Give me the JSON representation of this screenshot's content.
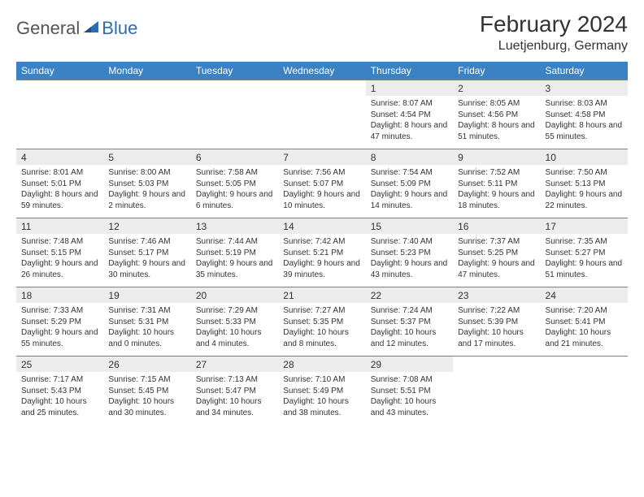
{
  "brand": {
    "part1": "General",
    "part2": "Blue"
  },
  "title": "February 2024",
  "location": "Luetjenburg, Germany",
  "colors": {
    "header_bg": "#3b82c4",
    "header_fg": "#ffffff",
    "daynum_bg": "#ececec",
    "border": "#808080",
    "text": "#333333",
    "brand_blue": "#2a6db5"
  },
  "day_headers": [
    "Sunday",
    "Monday",
    "Tuesday",
    "Wednesday",
    "Thursday",
    "Friday",
    "Saturday"
  ],
  "weeks": [
    [
      null,
      null,
      null,
      null,
      {
        "n": "1",
        "sr": "Sunrise: 8:07 AM",
        "ss": "Sunset: 4:54 PM",
        "dl": "Daylight: 8 hours and 47 minutes."
      },
      {
        "n": "2",
        "sr": "Sunrise: 8:05 AM",
        "ss": "Sunset: 4:56 PM",
        "dl": "Daylight: 8 hours and 51 minutes."
      },
      {
        "n": "3",
        "sr": "Sunrise: 8:03 AM",
        "ss": "Sunset: 4:58 PM",
        "dl": "Daylight: 8 hours and 55 minutes."
      }
    ],
    [
      {
        "n": "4",
        "sr": "Sunrise: 8:01 AM",
        "ss": "Sunset: 5:01 PM",
        "dl": "Daylight: 8 hours and 59 minutes."
      },
      {
        "n": "5",
        "sr": "Sunrise: 8:00 AM",
        "ss": "Sunset: 5:03 PM",
        "dl": "Daylight: 9 hours and 2 minutes."
      },
      {
        "n": "6",
        "sr": "Sunrise: 7:58 AM",
        "ss": "Sunset: 5:05 PM",
        "dl": "Daylight: 9 hours and 6 minutes."
      },
      {
        "n": "7",
        "sr": "Sunrise: 7:56 AM",
        "ss": "Sunset: 5:07 PM",
        "dl": "Daylight: 9 hours and 10 minutes."
      },
      {
        "n": "8",
        "sr": "Sunrise: 7:54 AM",
        "ss": "Sunset: 5:09 PM",
        "dl": "Daylight: 9 hours and 14 minutes."
      },
      {
        "n": "9",
        "sr": "Sunrise: 7:52 AM",
        "ss": "Sunset: 5:11 PM",
        "dl": "Daylight: 9 hours and 18 minutes."
      },
      {
        "n": "10",
        "sr": "Sunrise: 7:50 AM",
        "ss": "Sunset: 5:13 PM",
        "dl": "Daylight: 9 hours and 22 minutes."
      }
    ],
    [
      {
        "n": "11",
        "sr": "Sunrise: 7:48 AM",
        "ss": "Sunset: 5:15 PM",
        "dl": "Daylight: 9 hours and 26 minutes."
      },
      {
        "n": "12",
        "sr": "Sunrise: 7:46 AM",
        "ss": "Sunset: 5:17 PM",
        "dl": "Daylight: 9 hours and 30 minutes."
      },
      {
        "n": "13",
        "sr": "Sunrise: 7:44 AM",
        "ss": "Sunset: 5:19 PM",
        "dl": "Daylight: 9 hours and 35 minutes."
      },
      {
        "n": "14",
        "sr": "Sunrise: 7:42 AM",
        "ss": "Sunset: 5:21 PM",
        "dl": "Daylight: 9 hours and 39 minutes."
      },
      {
        "n": "15",
        "sr": "Sunrise: 7:40 AM",
        "ss": "Sunset: 5:23 PM",
        "dl": "Daylight: 9 hours and 43 minutes."
      },
      {
        "n": "16",
        "sr": "Sunrise: 7:37 AM",
        "ss": "Sunset: 5:25 PM",
        "dl": "Daylight: 9 hours and 47 minutes."
      },
      {
        "n": "17",
        "sr": "Sunrise: 7:35 AM",
        "ss": "Sunset: 5:27 PM",
        "dl": "Daylight: 9 hours and 51 minutes."
      }
    ],
    [
      {
        "n": "18",
        "sr": "Sunrise: 7:33 AM",
        "ss": "Sunset: 5:29 PM",
        "dl": "Daylight: 9 hours and 55 minutes."
      },
      {
        "n": "19",
        "sr": "Sunrise: 7:31 AM",
        "ss": "Sunset: 5:31 PM",
        "dl": "Daylight: 10 hours and 0 minutes."
      },
      {
        "n": "20",
        "sr": "Sunrise: 7:29 AM",
        "ss": "Sunset: 5:33 PM",
        "dl": "Daylight: 10 hours and 4 minutes."
      },
      {
        "n": "21",
        "sr": "Sunrise: 7:27 AM",
        "ss": "Sunset: 5:35 PM",
        "dl": "Daylight: 10 hours and 8 minutes."
      },
      {
        "n": "22",
        "sr": "Sunrise: 7:24 AM",
        "ss": "Sunset: 5:37 PM",
        "dl": "Daylight: 10 hours and 12 minutes."
      },
      {
        "n": "23",
        "sr": "Sunrise: 7:22 AM",
        "ss": "Sunset: 5:39 PM",
        "dl": "Daylight: 10 hours and 17 minutes."
      },
      {
        "n": "24",
        "sr": "Sunrise: 7:20 AM",
        "ss": "Sunset: 5:41 PM",
        "dl": "Daylight: 10 hours and 21 minutes."
      }
    ],
    [
      {
        "n": "25",
        "sr": "Sunrise: 7:17 AM",
        "ss": "Sunset: 5:43 PM",
        "dl": "Daylight: 10 hours and 25 minutes."
      },
      {
        "n": "26",
        "sr": "Sunrise: 7:15 AM",
        "ss": "Sunset: 5:45 PM",
        "dl": "Daylight: 10 hours and 30 minutes."
      },
      {
        "n": "27",
        "sr": "Sunrise: 7:13 AM",
        "ss": "Sunset: 5:47 PM",
        "dl": "Daylight: 10 hours and 34 minutes."
      },
      {
        "n": "28",
        "sr": "Sunrise: 7:10 AM",
        "ss": "Sunset: 5:49 PM",
        "dl": "Daylight: 10 hours and 38 minutes."
      },
      {
        "n": "29",
        "sr": "Sunrise: 7:08 AM",
        "ss": "Sunset: 5:51 PM",
        "dl": "Daylight: 10 hours and 43 minutes."
      },
      null,
      null
    ]
  ]
}
